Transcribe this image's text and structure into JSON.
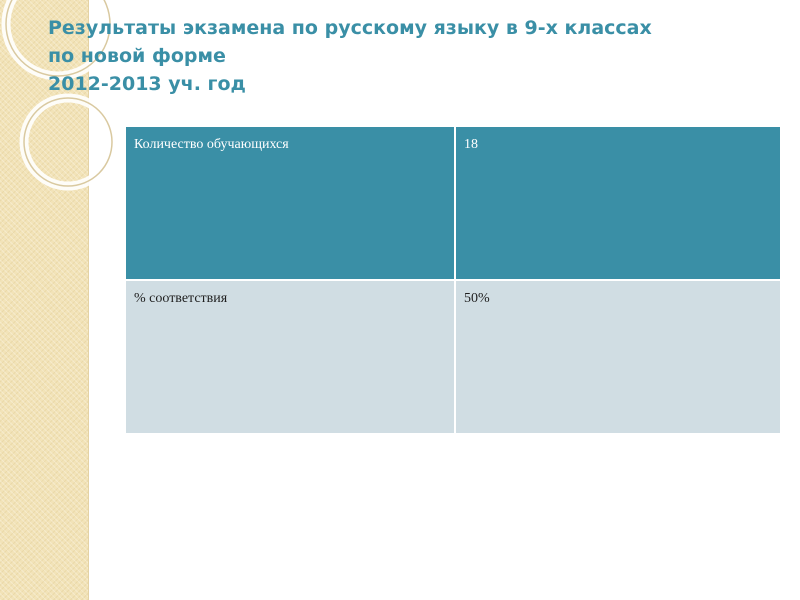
{
  "title": {
    "line1": "Результаты экзамена по русскому языку в 9-х классах",
    "line2": "по новой форме",
    "line3": "2012-2013 уч. год"
  },
  "table": {
    "rows": [
      {
        "label": "Количество обучающихся",
        "value": "18"
      },
      {
        "label": "% соответствия",
        "value": "50%"
      }
    ]
  },
  "colors": {
    "accent": "#3a8fa6",
    "header_row": "#3a8fa6",
    "body_row": "#d0dde3",
    "side_strip": "#f2e3b8"
  }
}
